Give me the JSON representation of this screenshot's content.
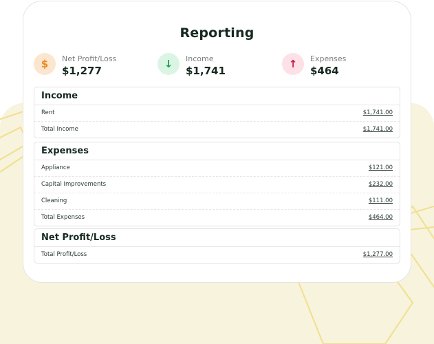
{
  "title": "Reporting",
  "stats": [
    {
      "label": "Net Profit/Loss",
      "value": "$1,277",
      "icon": "dollar-icon",
      "glyph": "$",
      "color": "#e98a1c",
      "bg": "#fde6cf"
    },
    {
      "label": "Income",
      "value": "$1,741",
      "icon": "arrow-down-icon",
      "glyph": "↓",
      "color": "#1f9d55",
      "bg": "#daf5e4"
    },
    {
      "label": "Expenses",
      "value": "$464",
      "icon": "arrow-up-icon",
      "glyph": "↑",
      "color": "#c41f4f",
      "bg": "#fde1e6"
    }
  ],
  "income": {
    "heading": "Income",
    "rows": [
      {
        "label": "Rent",
        "amount": "$1,741.00"
      },
      {
        "label": "Total Income",
        "amount": "$1,741.00"
      }
    ]
  },
  "expenses": {
    "heading": "Expenses",
    "rows": [
      {
        "label": "Appliance",
        "amount": "$121.00"
      },
      {
        "label": "Capital Improvements",
        "amount": "$232.00"
      },
      {
        "label": "Cleaning",
        "amount": "$111.00"
      },
      {
        "label": "Total Expenses",
        "amount": "$464.00"
      }
    ]
  },
  "net": {
    "heading": "Net Profit/Loss",
    "rows": [
      {
        "label": "Total Profit/Loss",
        "amount": "$1,277.00"
      }
    ]
  }
}
